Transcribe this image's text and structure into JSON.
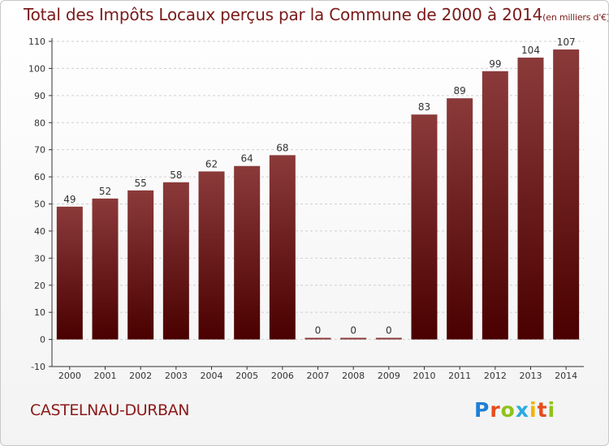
{
  "title": "Total des Impôts Locaux perçus par la Commune de 2000 à 2014",
  "unit_note": "(en milliers d'€)",
  "commune": "CASTELNAU-DURBAN",
  "logo": {
    "letters": [
      "P",
      "r",
      "o",
      "x",
      "i",
      "t",
      "i"
    ],
    "colors": [
      "#1f7fd6",
      "#e84c1c",
      "#8fc21a",
      "#2da9e1",
      "#f2b400",
      "#e84c1c",
      "#8fc21a"
    ]
  },
  "colors": {
    "bar_top": "#8b3a3a",
    "bar_bottom": "#4a0000",
    "text": "#7a1a1a"
  },
  "chart_data": {
    "type": "bar",
    "categories": [
      "2000",
      "2001",
      "2002",
      "2003",
      "2004",
      "2005",
      "2006",
      "2007",
      "2008",
      "2009",
      "2010",
      "2011",
      "2012",
      "2013",
      "2014"
    ],
    "values": [
      49,
      52,
      55,
      58,
      62,
      64,
      68,
      0,
      0,
      0,
      83,
      89,
      99,
      104,
      107
    ],
    "data_labels": [
      "49",
      "52",
      "55",
      "58",
      "62",
      "64",
      "68",
      "0",
      "0",
      "0",
      "83",
      "89",
      "99",
      "104",
      "107"
    ],
    "ylim": [
      -10,
      110
    ],
    "yticks": [
      -10,
      0,
      10,
      20,
      30,
      40,
      50,
      60,
      70,
      80,
      90,
      100,
      110
    ],
    "grid": true,
    "title": "Total des Impôts Locaux perçus par la Commune de 2000 à 2014"
  }
}
